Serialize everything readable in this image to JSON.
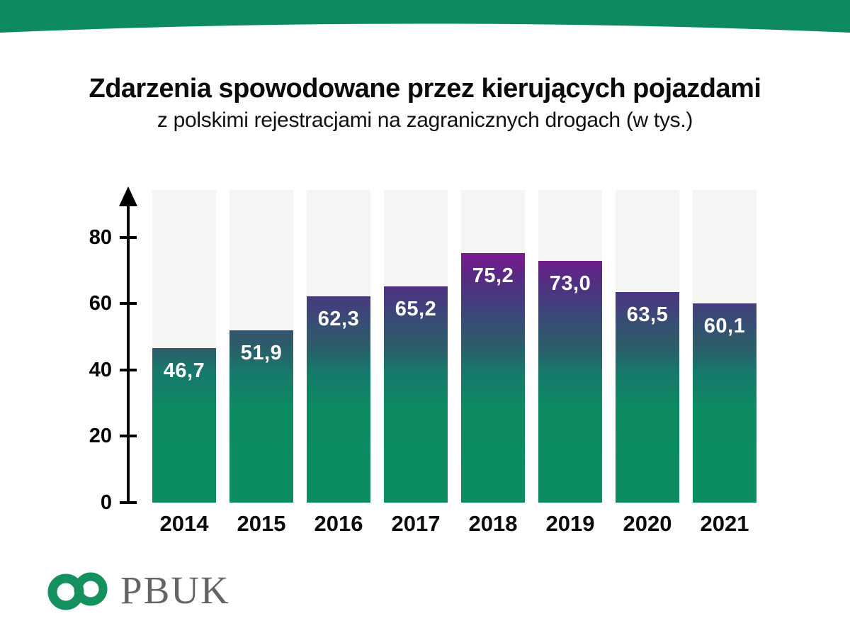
{
  "header": {
    "band_color": "#0E8A5F"
  },
  "title": "Zdarzenia spowodowane przez kierujących pojazdami",
  "subtitle": "z polskimi rejestracjami na zagranicznych drogach (w tys.)",
  "chart_data": {
    "type": "bar",
    "title": "Zdarzenia spowodowane przez kierujących pojazdami z polskimi rejestracjami na zagranicznych drogach (w tys.)",
    "categories": [
      "2014",
      "2015",
      "2016",
      "2017",
      "2018",
      "2019",
      "2020",
      "2021"
    ],
    "values": [
      46.7,
      51.9,
      62.3,
      65.2,
      75.2,
      73.0,
      63.5,
      60.1
    ],
    "value_labels": [
      "46,7",
      "51,9",
      "62,3",
      "65,2",
      "75,2",
      "73,0",
      "63,5",
      "60,1"
    ],
    "xlabel": "",
    "ylabel": "",
    "ylim": [
      0,
      94.3
    ],
    "yticks": [
      0,
      20,
      40,
      60,
      80
    ],
    "grid": false,
    "legend": false,
    "bar_gradient_bottom": "#0B8C61",
    "bar_gradient_top": "#7D1A8E",
    "column_background": "#F5F5F3",
    "axis_color": "#000000"
  },
  "logo": {
    "text": "PBUK",
    "ring_color": "#15915F",
    "text_color": "#646464"
  }
}
